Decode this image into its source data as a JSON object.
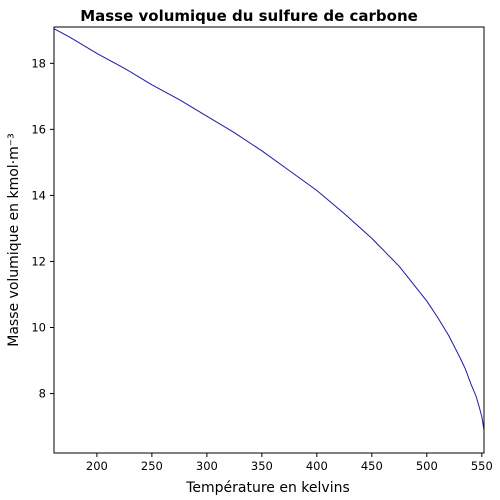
{
  "chart_data": {
    "type": "line",
    "title": "Masse volumique du sulfure de carbone",
    "xlabel": "Température en kelvins",
    "ylabel": "Masse volumique en kmol·m⁻³",
    "xlim": [
      161,
      552
    ],
    "ylim": [
      6.2,
      19.1
    ],
    "xticks": [
      200,
      250,
      300,
      350,
      400,
      450,
      500,
      550
    ],
    "yticks": [
      8,
      10,
      12,
      14,
      16,
      18
    ],
    "grid": false,
    "series": [
      {
        "color": "#1a1aa6",
        "x": [
          161,
          175,
          200,
          225,
          250,
          275,
          300,
          325,
          350,
          375,
          400,
          425,
          450,
          475,
          500,
          510,
          520,
          530,
          535,
          540,
          545,
          548,
          550,
          551,
          552
        ],
        "y": [
          19.05,
          18.8,
          18.3,
          17.85,
          17.35,
          16.9,
          16.4,
          15.9,
          15.35,
          14.75,
          14.15,
          13.45,
          12.7,
          11.85,
          10.8,
          10.3,
          9.75,
          9.1,
          8.75,
          8.3,
          7.9,
          7.55,
          7.3,
          7.1,
          6.9
        ]
      }
    ]
  }
}
